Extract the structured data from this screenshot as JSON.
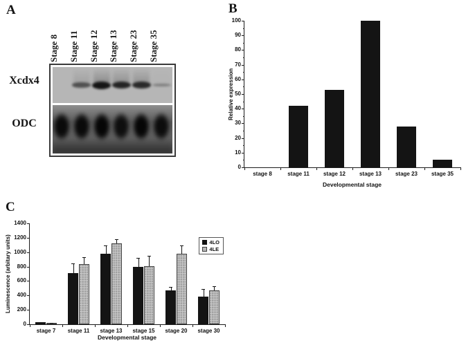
{
  "figure": {
    "panel_a": {
      "label": "A",
      "row_labels": [
        "Xcdx4",
        "ODC"
      ],
      "lanes": [
        {
          "label": "Stage 8",
          "xcdx4_band": 0,
          "odc_band": 0.95
        },
        {
          "label": "Stage 11",
          "xcdx4_band": 0.45,
          "odc_band": 0.95
        },
        {
          "label": "Stage 12",
          "xcdx4_band": 1.0,
          "odc_band": 1.0
        },
        {
          "label": "Stage 13",
          "xcdx4_band": 0.85,
          "odc_band": 0.9
        },
        {
          "label": "Stage 23",
          "xcdx4_band": 0.8,
          "odc_band": 1.0
        },
        {
          "label": "Stage 35",
          "xcdx4_band": 0.06,
          "odc_band": 0.92
        }
      ]
    },
    "panel_b": {
      "label": "B"
    },
    "panel_c": {
      "label": "C"
    }
  },
  "colors": {
    "bar_black": "#141414",
    "bar_gray": "#d2d2d2",
    "axis": "#1a1a1a"
  },
  "chart_data": [
    {
      "panel": "B",
      "type": "bar",
      "categories": [
        "stage 8",
        "stage 11",
        "stage 12",
        "stage 13",
        "stage 23",
        "stage 35"
      ],
      "values": [
        0,
        42,
        53,
        100,
        28,
        5
      ],
      "xlabel": "Developmental stage",
      "ylabel": "Relative expression",
      "ylim": [
        0,
        100
      ],
      "ytick_step": 10,
      "ytick_minor": true,
      "bar_color": "#141414",
      "group_frac": 0.55,
      "grid": false,
      "legend": false
    },
    {
      "panel": "C",
      "type": "bar",
      "categories": [
        "stage 7",
        "stage 11",
        "stage 13",
        "stage 15",
        "stage 20",
        "stage 30"
      ],
      "series": [
        {
          "name": "4LO",
          "values": [
            25,
            710,
            980,
            800,
            470,
            380
          ],
          "errors": [
            8,
            130,
            110,
            120,
            45,
            110
          ],
          "color": "#141414",
          "pattern": "solid"
        },
        {
          "name": "4LE",
          "values": [
            15,
            830,
            1120,
            805,
            975,
            470
          ],
          "errors": [
            8,
            100,
            60,
            145,
            120,
            60
          ],
          "color": "#d2d2d2",
          "pattern": "dotted"
        }
      ],
      "xlabel": "Developmental stage",
      "ylabel": "Luminescence (arbitary units)",
      "ylim": [
        0,
        1400
      ],
      "ytick_step": 200,
      "ytick_minor": false,
      "group_frac": 0.64,
      "grid": false,
      "legend": true,
      "legend_position": "top-right"
    }
  ]
}
